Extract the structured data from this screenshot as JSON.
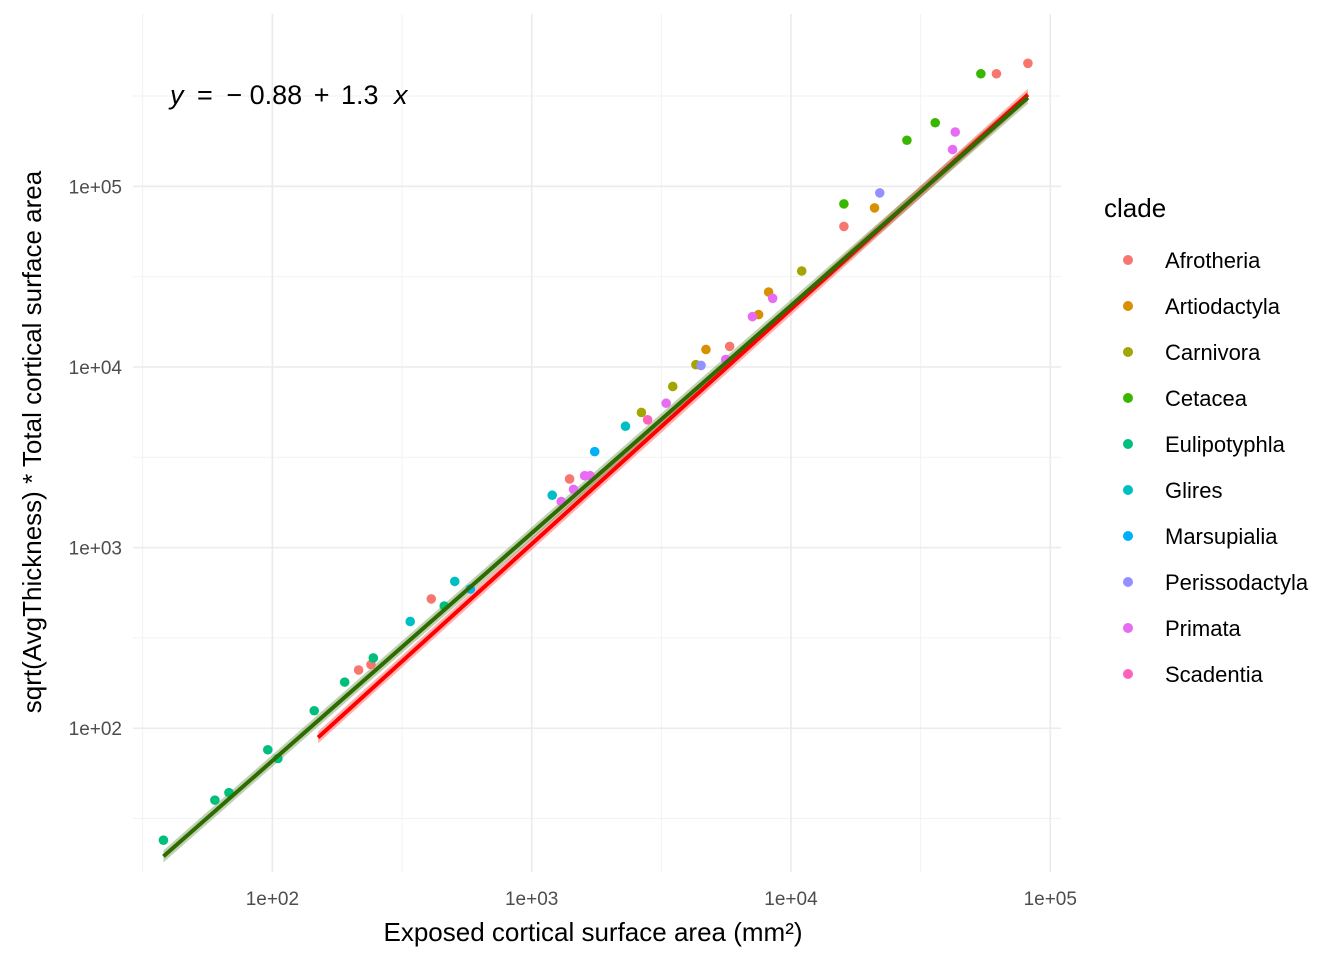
{
  "chart_data": {
    "type": "scatter",
    "title": "",
    "xlabel": "Exposed cortical surface area (mm²)",
    "ylabel": "sqrt(AvgThickness) * Total cortical surface area",
    "x_scale": "log10",
    "y_scale": "log10",
    "xlim": [
      29,
      110000
    ],
    "ylim": [
      16,
      900000
    ],
    "x_ticks": [
      100,
      1000,
      10000,
      100000
    ],
    "x_tick_labels": [
      "1e+02",
      "1e+03",
      "1e+04",
      "1e+05"
    ],
    "y_ticks": [
      100,
      1000,
      10000,
      100000
    ],
    "y_tick_labels": [
      "1e+02",
      "1e+03",
      "1e+04",
      "1e+05"
    ],
    "grid": true,
    "legend": {
      "title": "clade",
      "position": "right"
    },
    "annotation": {
      "y_symbol": "y",
      "equals": "=",
      "minus": "−",
      "intercept": "0.88",
      "plus": "+",
      "slope": "1.3",
      "x_symbol": "x"
    },
    "series": [
      {
        "name": "Afrotheria",
        "color": "#F8766D",
        "points": [
          [
            215,
            210
          ],
          [
            240,
            225
          ],
          [
            410,
            520
          ],
          [
            1400,
            2400
          ],
          [
            5800,
            13000
          ],
          [
            16000,
            60000
          ],
          [
            62000,
            420000
          ],
          [
            82000,
            480000
          ]
        ]
      },
      {
        "name": "Artiodactyla",
        "color": "#D89000",
        "points": [
          [
            4700,
            12500
          ],
          [
            7500,
            19500
          ],
          [
            8200,
            26000
          ],
          [
            21000,
            76000
          ]
        ]
      },
      {
        "name": "Carnivora",
        "color": "#A3A500",
        "points": [
          [
            2650,
            5600
          ],
          [
            3500,
            7800
          ],
          [
            4300,
            10300
          ],
          [
            11000,
            34000
          ]
        ]
      },
      {
        "name": "Cetacea",
        "color": "#39B600",
        "points": [
          [
            16000,
            80000
          ],
          [
            28000,
            180000
          ],
          [
            36000,
            225000
          ],
          [
            54000,
            420000
          ]
        ]
      },
      {
        "name": "Eulipotyphla",
        "color": "#00BF7D",
        "points": [
          [
            38,
            24
          ],
          [
            60,
            40
          ],
          [
            68,
            44
          ],
          [
            96,
            76
          ],
          [
            105,
            68
          ],
          [
            145,
            125
          ],
          [
            190,
            180
          ],
          [
            245,
            245
          ],
          [
            460,
            475
          ]
        ]
      },
      {
        "name": "Glires",
        "color": "#00BFC4",
        "points": [
          [
            340,
            390
          ],
          [
            505,
            650
          ],
          [
            1200,
            1950
          ],
          [
            2300,
            4700
          ]
        ]
      },
      {
        "name": "Marsupialia",
        "color": "#00B0F6",
        "points": [
          [
            580,
            590
          ],
          [
            1750,
            3400
          ]
        ]
      },
      {
        "name": "Perissodactyla",
        "color": "#9590FF",
        "points": [
          [
            4500,
            10200
          ],
          [
            22000,
            92000
          ]
        ]
      },
      {
        "name": "Primata",
        "color": "#E76BF3",
        "points": [
          [
            1300,
            1800
          ],
          [
            1450,
            2100
          ],
          [
            1600,
            2500
          ],
          [
            1680,
            2500
          ],
          [
            3300,
            6300
          ],
          [
            5600,
            11000
          ],
          [
            7100,
            19000
          ],
          [
            8500,
            24000
          ],
          [
            42000,
            160000
          ],
          [
            43000,
            200000
          ]
        ]
      },
      {
        "name": "Scadentia",
        "color": "#FF62BC",
        "points": [
          [
            2800,
            5100
          ]
        ]
      }
    ],
    "fit_lines": [
      {
        "color": "#FF0000",
        "from_x": 150,
        "to_x": 82000,
        "intercept_log10": -0.88,
        "slope": 1.3
      },
      {
        "color": "#2E6B00",
        "from_x": 38,
        "to_x": 82000,
        "intercept_log10": -0.7,
        "slope": 1.26
      }
    ]
  }
}
